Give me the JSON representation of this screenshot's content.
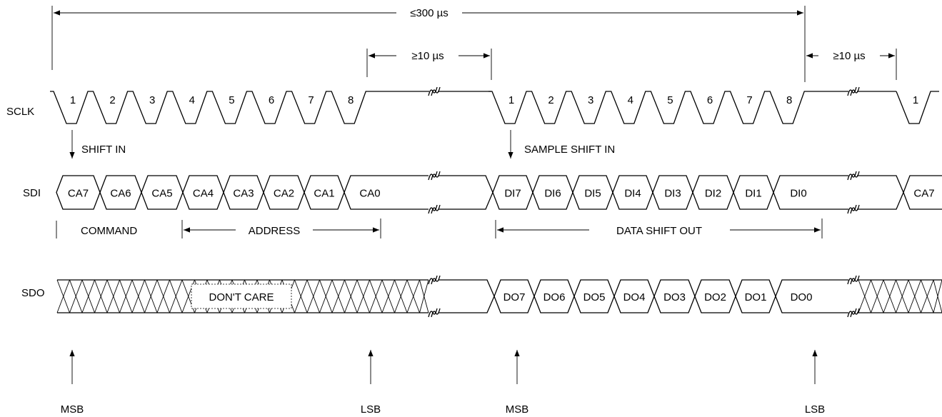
{
  "timing": {
    "total_label": "≤300 µs",
    "gap_label_1": "≥10 µs",
    "gap_label_2": "≥10 µs"
  },
  "signals": {
    "sclk": "SCLK",
    "sdi": "SDI",
    "sdo": "SDO"
  },
  "clock": {
    "burst1": [
      "1",
      "2",
      "3",
      "4",
      "5",
      "6",
      "7",
      "8"
    ],
    "burst2": [
      "1",
      "2",
      "3",
      "4",
      "5",
      "6",
      "7",
      "8"
    ],
    "burst3": [
      "1"
    ]
  },
  "annotations": {
    "shift_in": "SHIFT IN",
    "sample_shift_in": "SAMPLE SHIFT IN",
    "command": "COMMAND",
    "address": "ADDRESS",
    "data_shift_out": "DATA SHIFT OUT",
    "dont_care": "DON'T CARE",
    "msb": "MSB",
    "lsb": "LSB"
  },
  "sdi_bits": {
    "command_address": [
      "CA7",
      "CA6",
      "CA5",
      "CA4",
      "CA3",
      "CA2",
      "CA1",
      "CA0"
    ],
    "data_in": [
      "DI7",
      "DI6",
      "DI5",
      "DI4",
      "DI3",
      "DI2",
      "DI1",
      "DI0"
    ],
    "next": [
      "CA7"
    ]
  },
  "sdo_bits": {
    "data_out": [
      "DO7",
      "DO6",
      "DO5",
      "DO4",
      "DO3",
      "DO2",
      "DO1",
      "DO0"
    ]
  },
  "colors": {
    "ink": "#000000",
    "background": "#ffffff"
  }
}
